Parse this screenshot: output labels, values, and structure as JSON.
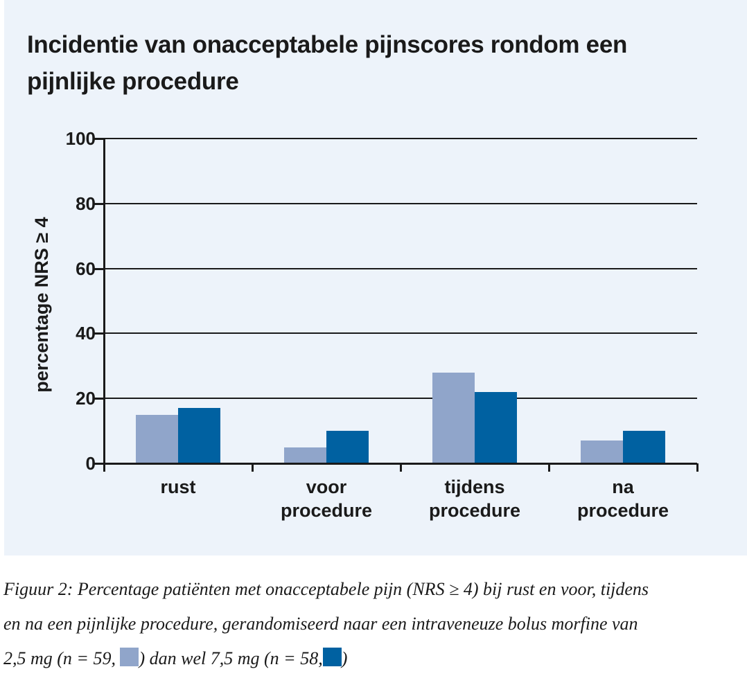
{
  "title_lines": [
    "Incidentie van onacceptabele pijnscores rondom een",
    "pijnlijke procedure"
  ],
  "panel": {
    "background": "#edf3fa"
  },
  "colors": {
    "series_light": "#90a5ca",
    "series_dark": "#0061a1",
    "axis": "#1a1a1a",
    "text": "#1a1a1a"
  },
  "chart_data": {
    "type": "bar",
    "title": "Incidentie van onacceptabele pijnscores rondom een pijnlijke procedure",
    "xlabel": "",
    "ylabel": "percentage NRS ≥ 4",
    "ylim": [
      0,
      100
    ],
    "yticks": [
      0,
      20,
      40,
      60,
      80,
      100
    ],
    "grid": true,
    "legend_position": "in-caption",
    "categories": [
      "rust",
      "voor procedure",
      "tijdens procedure",
      "na procedure"
    ],
    "series": [
      {
        "name": "2,5 mg (n = 59)",
        "color": "#90a5ca",
        "values": [
          15,
          5,
          28,
          7
        ]
      },
      {
        "name": "7,5 mg (n = 58)",
        "color": "#0061a1",
        "values": [
          17,
          10,
          22,
          10
        ]
      }
    ]
  },
  "caption": {
    "line1": "Figuur 2: Percentage patiënten met onacceptabele pijn (NRS ≥ 4) bij rust en voor, tijdens",
    "line2": "en na een pijnlijke procedure, gerandomiseerd naar een intraveneuze bolus morfine van",
    "line3_part1": "2,5 mg (n = 59, ",
    "line3_part2": ") dan wel 7,5 mg (n = 58,",
    "line3_part3": ")"
  }
}
